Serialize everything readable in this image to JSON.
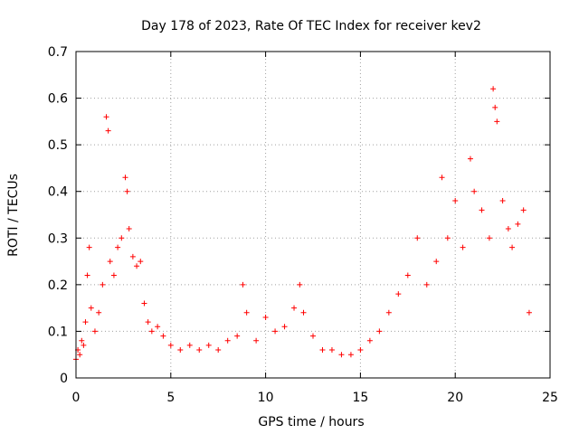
{
  "chart_data": {
    "type": "scatter",
    "title": "Day 178 of 2023, Rate Of TEC Index for receiver kev2",
    "xlabel": "GPS time / hours",
    "ylabel": "ROTI / TECUs",
    "xlim": [
      0,
      25
    ],
    "ylim": [
      0,
      0.7
    ],
    "xticks": [
      "0",
      "5",
      "10",
      "15",
      "20",
      "25"
    ],
    "yticks": [
      "0",
      "0.1",
      "0.2",
      "0.3",
      "0.4",
      "0.5",
      "0.6",
      "0.7"
    ],
    "grid": true,
    "marker": "+",
    "color": "#ff0000",
    "series": [
      {
        "x": [
          0.0,
          0.1,
          0.2,
          0.3,
          0.4,
          0.5,
          0.6,
          0.7,
          0.8,
          1.0,
          1.2,
          1.4,
          1.6,
          1.7,
          1.8,
          2.0,
          2.2,
          2.4,
          2.6,
          2.7,
          2.8,
          3.0,
          3.2,
          3.4,
          3.6,
          3.8,
          4.0,
          4.3,
          4.6,
          5.0,
          5.5,
          6.0,
          6.5,
          7.0,
          7.5,
          8.0,
          8.5,
          8.8,
          9.0,
          9.5,
          10.0,
          10.5,
          11.0,
          11.5,
          11.8,
          12.0,
          12.5,
          13.0,
          13.5,
          14.0,
          14.5,
          15.0,
          15.5,
          16.0,
          16.5,
          17.0,
          17.5,
          18.0,
          18.5,
          19.0,
          19.3,
          19.6,
          20.0,
          20.4,
          20.8,
          21.0,
          21.4,
          21.8,
          22.0,
          22.1,
          22.2,
          22.5,
          22.8,
          23.0,
          23.3,
          23.6,
          23.9
        ],
        "y": [
          0.04,
          0.06,
          0.05,
          0.08,
          0.07,
          0.12,
          0.22,
          0.28,
          0.15,
          0.1,
          0.14,
          0.2,
          0.56,
          0.53,
          0.25,
          0.22,
          0.28,
          0.3,
          0.43,
          0.4,
          0.32,
          0.26,
          0.24,
          0.25,
          0.16,
          0.12,
          0.1,
          0.11,
          0.09,
          0.07,
          0.06,
          0.07,
          0.06,
          0.07,
          0.06,
          0.08,
          0.09,
          0.2,
          0.14,
          0.08,
          0.13,
          0.1,
          0.11,
          0.15,
          0.2,
          0.14,
          0.09,
          0.06,
          0.06,
          0.05,
          0.05,
          0.06,
          0.08,
          0.1,
          0.14,
          0.18,
          0.22,
          0.3,
          0.2,
          0.25,
          0.43,
          0.3,
          0.38,
          0.28,
          0.47,
          0.4,
          0.36,
          0.3,
          0.62,
          0.58,
          0.55,
          0.38,
          0.32,
          0.28,
          0.33,
          0.36,
          0.14
        ]
      }
    ]
  }
}
